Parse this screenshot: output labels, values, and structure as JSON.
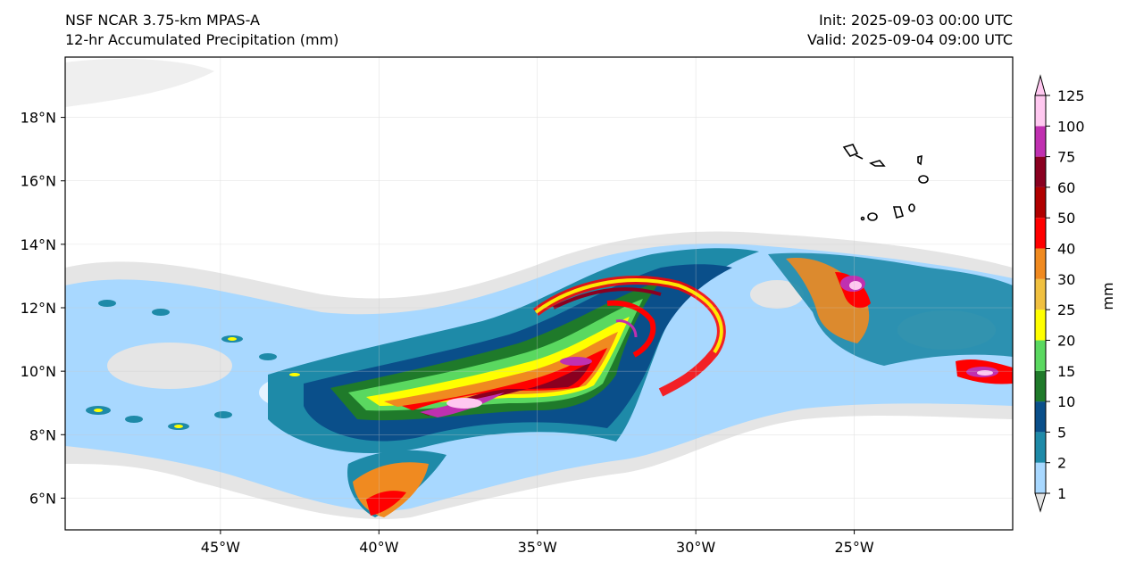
{
  "header": {
    "title_line1": "NSF NCAR 3.75-km MPAS-A",
    "title_line2": "12-hr Accumulated Precipitation (mm)",
    "init": "Init: 2025-09-03 00:00 UTC",
    "valid": "Valid: 2025-09-04 09:00 UTC"
  },
  "map": {
    "lon_ticks": [
      "45°W",
      "40°W",
      "35°W",
      "30°W",
      "25°W"
    ],
    "lat_ticks": [
      "18°N",
      "16°N",
      "14°N",
      "12°N",
      "10°N",
      "8°N",
      "6°N"
    ],
    "lon_values": [
      -45,
      -40,
      -35,
      -30,
      -25
    ],
    "lat_values": [
      18,
      16,
      14,
      12,
      10,
      8,
      6
    ],
    "lon_range": [
      -49.9,
      -20.0
    ],
    "lat_range": [
      5.0,
      19.9
    ]
  },
  "colorbar": {
    "unit": "mm",
    "levels": [
      "1",
      "2",
      "5",
      "10",
      "15",
      "20",
      "25",
      "30",
      "40",
      "50",
      "60",
      "75",
      "100",
      "125"
    ],
    "colors": [
      "#e5e5e5",
      "#a8d8ff",
      "#1e8aa8",
      "#0a4f8a",
      "#1f7a2a",
      "#5ad860",
      "#ffff00",
      "#f0c040",
      "#f08a20",
      "#ff0000",
      "#b00000",
      "#8a0020",
      "#c030b0",
      "#ffc8f0"
    ]
  }
}
